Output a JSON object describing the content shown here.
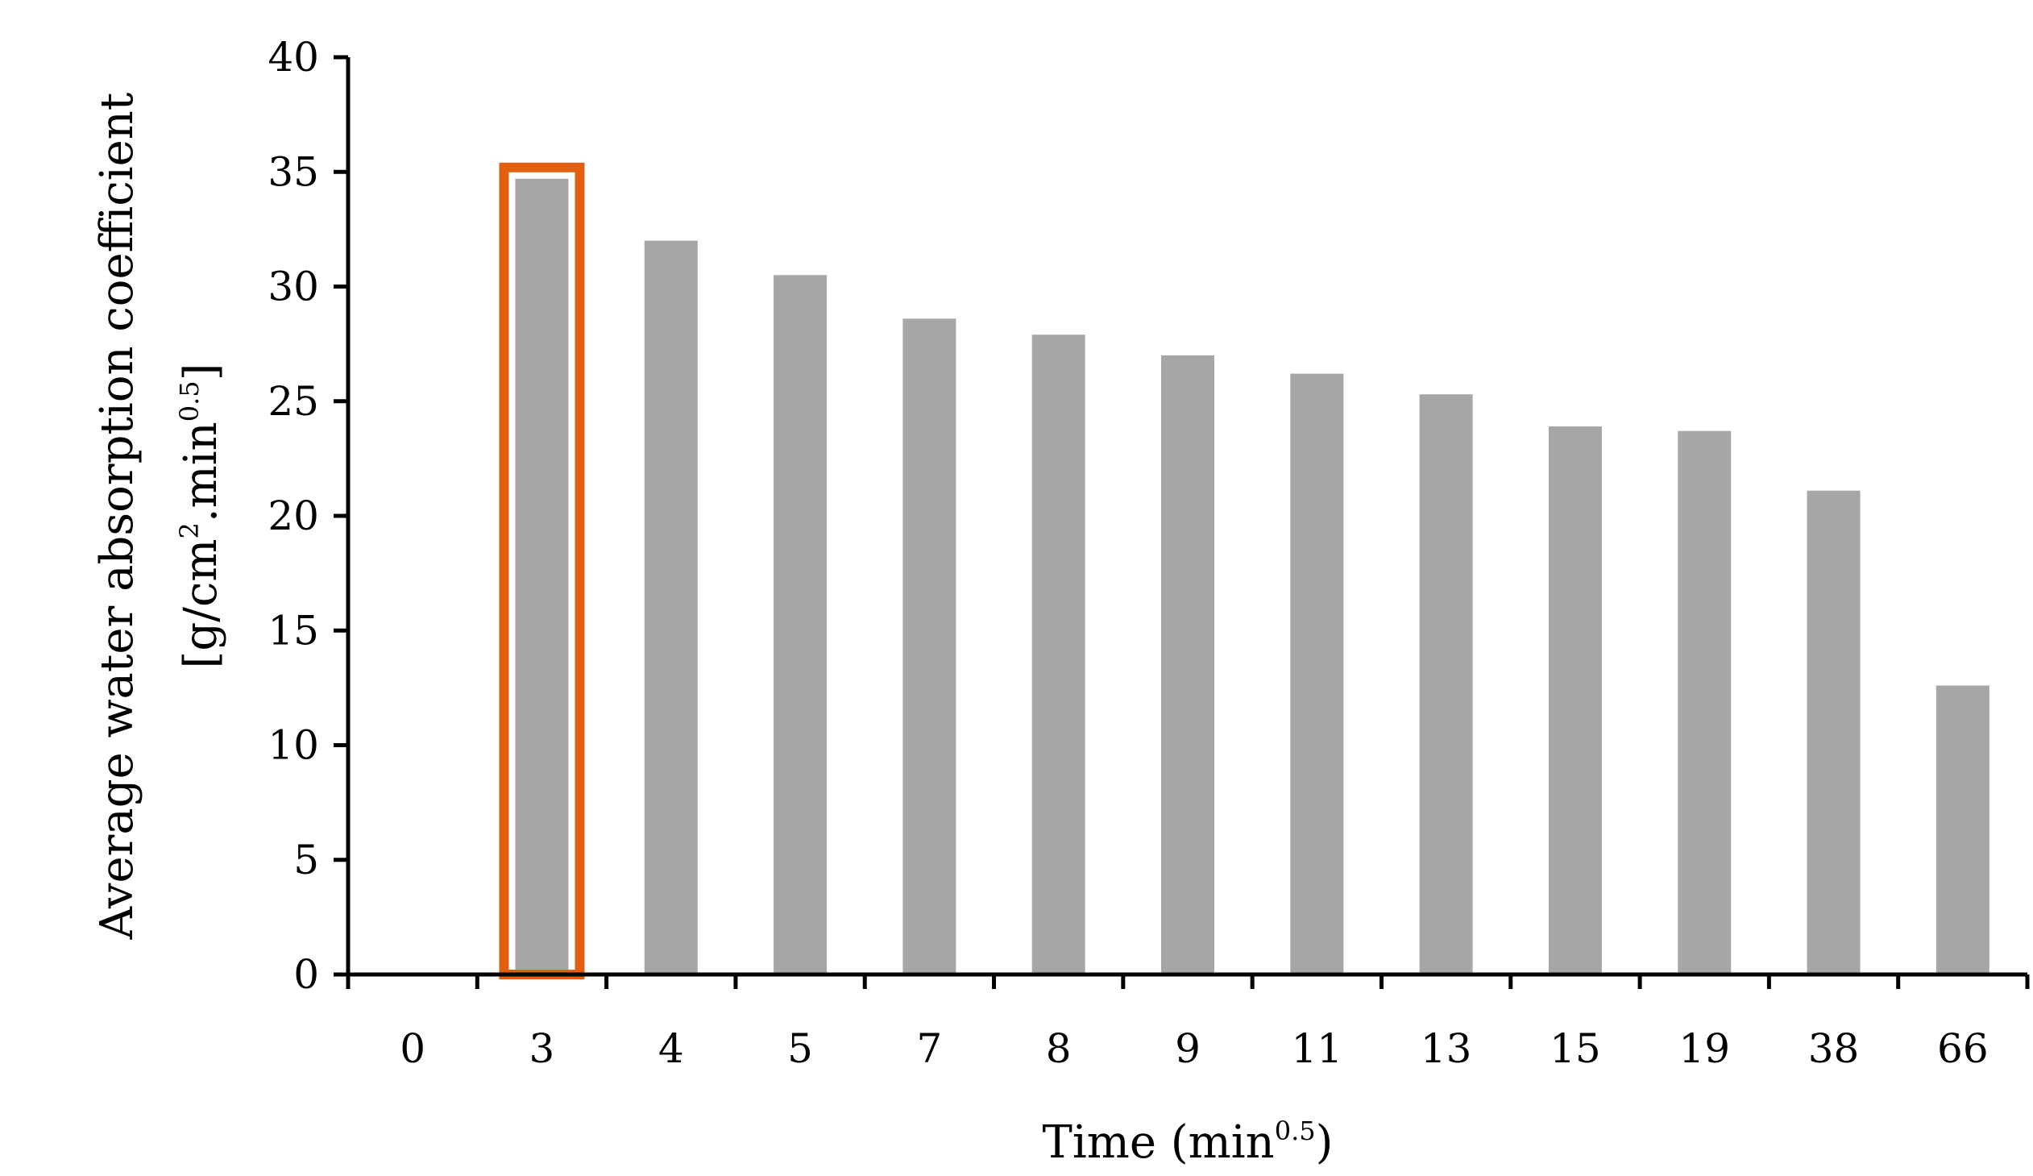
{
  "chart_data": {
    "type": "bar",
    "title": "",
    "xlabel": {
      "main": "Time (min",
      "sup": "0.5",
      "end": ")"
    },
    "ylabel": {
      "line1": "Average water absorption coefficient",
      "line2_main": "[g/cm",
      "line2_sup1": "2",
      "line2_mid": ".min",
      "line2_sup2": "0.5",
      "line2_end": "]"
    },
    "categories": [
      "0",
      "3",
      "4",
      "5",
      "7",
      "8",
      "9",
      "11",
      "13",
      "15",
      "19",
      "38",
      "66"
    ],
    "values": [
      0,
      34.7,
      32.0,
      30.5,
      28.6,
      27.9,
      27.0,
      26.2,
      25.3,
      23.9,
      23.7,
      21.1,
      12.6
    ],
    "ylim": [
      0,
      40
    ],
    "yticks": [
      "0",
      "5",
      "10",
      "15",
      "20",
      "25",
      "30",
      "35",
      "40"
    ],
    "grid": false,
    "bar_color": "#a6a6a6",
    "highlight": {
      "category": "3",
      "color": "#e0600f"
    }
  }
}
